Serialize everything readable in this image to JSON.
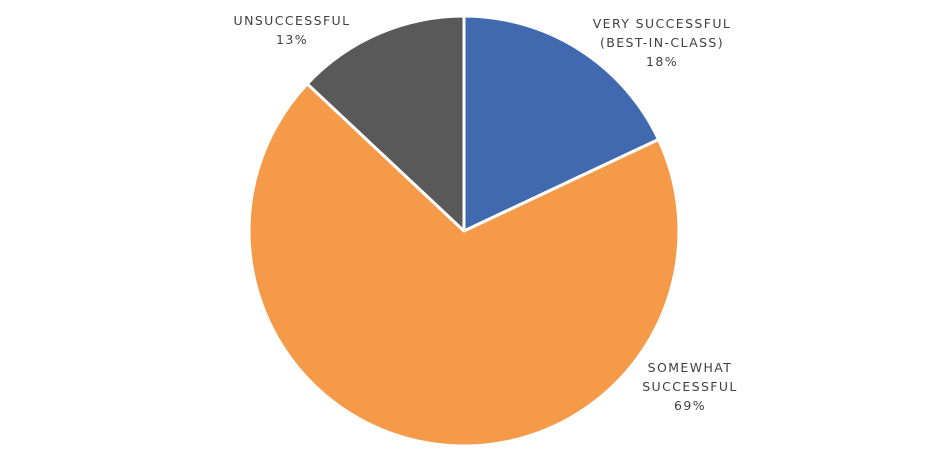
{
  "chart_data": {
    "type": "pie",
    "categories": [
      "VERY SUCCESSFUL (BEST-IN-CLASS)",
      "SOMEWHAT SUCCESSFUL",
      "UNSUCCESSFUL"
    ],
    "values": [
      18,
      69,
      13
    ],
    "value_labels": [
      "18%",
      "69%",
      "13%"
    ],
    "colors": [
      "#4169b0",
      "#f59a48",
      "#595959"
    ]
  }
}
